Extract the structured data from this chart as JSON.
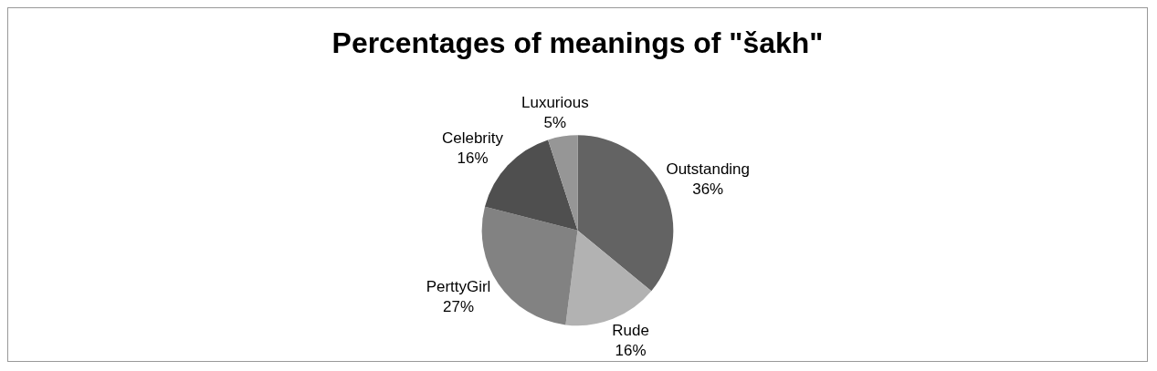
{
  "chart_data": {
    "type": "pie",
    "title": "Percentages of meanings of \"šakh\"",
    "categories": [
      "Outstanding",
      "Rude",
      "PerttyGirl",
      "Celebrity",
      "Luxurious"
    ],
    "values": [
      36,
      16,
      27,
      16,
      5
    ],
    "value_labels": [
      "36%",
      "16%",
      "27%",
      "16%",
      "5%"
    ],
    "colors": [
      "#636363",
      "#b2b2b2",
      "#828282",
      "#4f4f4f",
      "#969696"
    ],
    "legend": false
  }
}
